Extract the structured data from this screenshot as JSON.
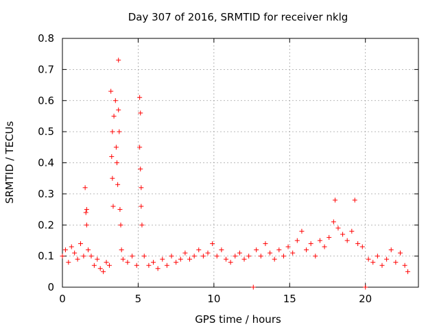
{
  "chart_data": {
    "type": "scatter",
    "title": "Day 307 of 2016, SRMTID for receiver nklg",
    "xlabel": "GPS time / hours",
    "ylabel": "SRMTID / TECUs",
    "xlim": [
      0,
      23.5
    ],
    "ylim": [
      0,
      0.8
    ],
    "x_ticks": [
      0,
      5,
      10,
      15,
      20
    ],
    "x_tick_labels": [
      "0",
      "5",
      "10",
      "15",
      "20"
    ],
    "y_ticks": [
      0,
      0.1,
      0.2,
      0.3,
      0.4,
      0.5,
      0.6,
      0.7,
      0.8
    ],
    "y_tick_labels": [
      "0",
      "0.1",
      "0.2",
      "0.3",
      "0.4",
      "0.5",
      "0.6",
      "0.7",
      "0.8"
    ],
    "grid": true,
    "marker": "plus",
    "series": [
      {
        "name": "SRMTID",
        "color": "#ff0000",
        "points": [
          [
            0.0,
            0.1
          ],
          [
            0.2,
            0.12
          ],
          [
            0.4,
            0.08
          ],
          [
            0.6,
            0.13
          ],
          [
            0.8,
            0.11
          ],
          [
            1.0,
            0.09
          ],
          [
            1.2,
            0.14
          ],
          [
            1.4,
            0.1
          ],
          [
            1.5,
            0.32
          ],
          [
            1.55,
            0.24
          ],
          [
            1.6,
            0.25
          ],
          [
            1.6,
            0.2
          ],
          [
            1.7,
            0.12
          ],
          [
            1.9,
            0.1
          ],
          [
            2.1,
            0.07
          ],
          [
            2.3,
            0.09
          ],
          [
            2.5,
            0.06
          ],
          [
            2.7,
            0.05
          ],
          [
            2.9,
            0.08
          ],
          [
            3.1,
            0.07
          ],
          [
            3.2,
            0.63
          ],
          [
            3.25,
            0.42
          ],
          [
            3.3,
            0.35
          ],
          [
            3.3,
            0.5
          ],
          [
            3.35,
            0.26
          ],
          [
            3.4,
            0.55
          ],
          [
            3.5,
            0.6
          ],
          [
            3.55,
            0.45
          ],
          [
            3.6,
            0.4
          ],
          [
            3.65,
            0.33
          ],
          [
            3.7,
            0.73
          ],
          [
            3.7,
            0.57
          ],
          [
            3.75,
            0.5
          ],
          [
            3.8,
            0.25
          ],
          [
            3.85,
            0.2
          ],
          [
            3.9,
            0.12
          ],
          [
            4.0,
            0.09
          ],
          [
            4.3,
            0.08
          ],
          [
            4.6,
            0.1
          ],
          [
            4.9,
            0.07
          ],
          [
            5.1,
            0.61
          ],
          [
            5.1,
            0.45
          ],
          [
            5.15,
            0.56
          ],
          [
            5.15,
            0.38
          ],
          [
            5.2,
            0.32
          ],
          [
            5.2,
            0.26
          ],
          [
            5.25,
            0.2
          ],
          [
            5.4,
            0.1
          ],
          [
            5.7,
            0.07
          ],
          [
            6.0,
            0.08
          ],
          [
            6.3,
            0.06
          ],
          [
            6.6,
            0.09
          ],
          [
            6.9,
            0.07
          ],
          [
            7.2,
            0.1
          ],
          [
            7.5,
            0.08
          ],
          [
            7.8,
            0.09
          ],
          [
            8.1,
            0.11
          ],
          [
            8.4,
            0.09
          ],
          [
            8.7,
            0.1
          ],
          [
            9.0,
            0.12
          ],
          [
            9.3,
            0.1
          ],
          [
            9.6,
            0.11
          ],
          [
            9.9,
            0.14
          ],
          [
            10.2,
            0.1
          ],
          [
            10.5,
            0.12
          ],
          [
            10.8,
            0.09
          ],
          [
            11.1,
            0.08
          ],
          [
            11.4,
            0.1
          ],
          [
            11.7,
            0.11
          ],
          [
            12.0,
            0.09
          ],
          [
            12.3,
            0.1
          ],
          [
            12.6,
            0.0
          ],
          [
            12.8,
            0.12
          ],
          [
            13.1,
            0.1
          ],
          [
            13.4,
            0.14
          ],
          [
            13.7,
            0.11
          ],
          [
            14.0,
            0.09
          ],
          [
            14.3,
            0.12
          ],
          [
            14.6,
            0.1
          ],
          [
            14.9,
            0.13
          ],
          [
            15.2,
            0.11
          ],
          [
            15.5,
            0.15
          ],
          [
            15.8,
            0.18
          ],
          [
            16.1,
            0.12
          ],
          [
            16.4,
            0.14
          ],
          [
            16.7,
            0.1
          ],
          [
            17.0,
            0.15
          ],
          [
            17.3,
            0.13
          ],
          [
            17.6,
            0.16
          ],
          [
            17.9,
            0.21
          ],
          [
            18.0,
            0.28
          ],
          [
            18.2,
            0.19
          ],
          [
            18.5,
            0.17
          ],
          [
            18.8,
            0.15
          ],
          [
            19.1,
            0.18
          ],
          [
            19.3,
            0.28
          ],
          [
            19.5,
            0.14
          ],
          [
            19.8,
            0.13
          ],
          [
            20.0,
            0.0
          ],
          [
            20.2,
            0.09
          ],
          [
            20.5,
            0.08
          ],
          [
            20.8,
            0.1
          ],
          [
            21.1,
            0.07
          ],
          [
            21.4,
            0.09
          ],
          [
            21.7,
            0.12
          ],
          [
            22.0,
            0.08
          ],
          [
            22.3,
            0.11
          ],
          [
            22.6,
            0.07
          ],
          [
            22.8,
            0.05
          ]
        ]
      }
    ]
  }
}
